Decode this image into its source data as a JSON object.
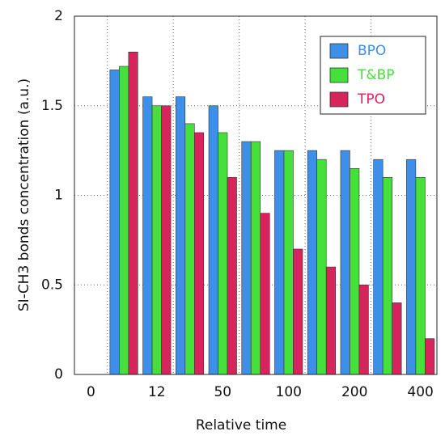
{
  "chart_data": {
    "type": "bar",
    "ylabel": "SI-CH3 bonds concentration (a.u.)",
    "xlabel": "Relative time",
    "categories": [
      "0",
      null,
      "12",
      null,
      "50",
      null,
      "100",
      null,
      "200",
      null,
      "400"
    ],
    "series": [
      {
        "name": "BPO",
        "color": "#3d8fe8",
        "values": [
          null,
          1.7,
          1.55,
          1.55,
          1.5,
          1.3,
          1.25,
          1.25,
          1.25,
          1.2,
          1.2
        ]
      },
      {
        "name": "T&BP",
        "color": "#46e03c",
        "values": [
          null,
          1.72,
          1.5,
          1.4,
          1.35,
          1.3,
          1.25,
          1.2,
          1.15,
          1.1,
          1.1
        ]
      },
      {
        "name": "TPO",
        "color": "#d6245c",
        "values": [
          null,
          1.8,
          1.5,
          1.35,
          1.1,
          0.9,
          0.7,
          0.6,
          0.5,
          0.4,
          0.2
        ]
      }
    ],
    "ylim": [
      0,
      2
    ],
    "yticks": [
      0,
      0.5,
      1,
      1.5,
      2
    ],
    "grid": true,
    "legend": "upper right"
  }
}
